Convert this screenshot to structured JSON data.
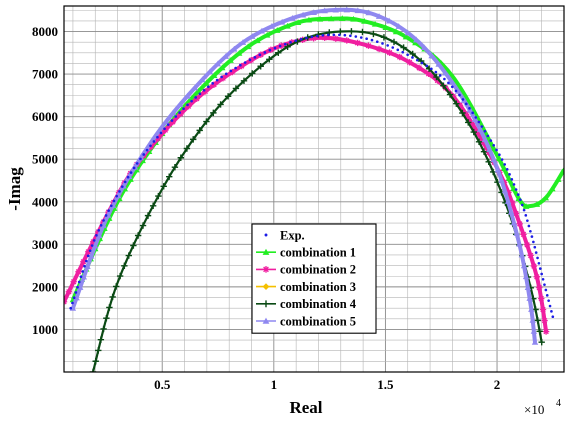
{
  "chart_data": {
    "type": "line",
    "xlabel": "Real",
    "ylabel": "-Imag",
    "x_multiplier_label": "×10",
    "x_multiplier_exp": "4",
    "xlim": [
      0.06,
      2.3
    ],
    "ylim": [
      0,
      8600
    ],
    "xticks": [
      0.5,
      1,
      1.5,
      2
    ],
    "xtick_labels": [
      "0.5",
      "1",
      "1.5",
      "2"
    ],
    "yticks": [
      1000,
      2000,
      3000,
      4000,
      5000,
      6000,
      7000,
      8000
    ],
    "ytick_labels": [
      "1000",
      "2000",
      "3000",
      "4000",
      "5000",
      "6000",
      "7000",
      "8000"
    ],
    "grid": true,
    "legend_position": "bottom-center",
    "series": [
      {
        "name": "Exp.",
        "color": "#1c1ce6",
        "marker": "dot",
        "x": [
          0.09,
          0.2,
          0.35,
          0.5,
          0.65,
          0.8,
          1.0,
          1.2,
          1.4,
          1.6,
          1.8,
          2.0,
          2.1,
          2.15,
          2.2,
          2.25
        ],
        "y": [
          1500,
          3150,
          4600,
          5650,
          6450,
          7050,
          7600,
          7900,
          7850,
          7450,
          6700,
          5200,
          4100,
          3300,
          2300,
          1300
        ]
      },
      {
        "name": "combination 1",
        "color": "#22ee22",
        "marker": "triangle",
        "x": [
          0.1,
          0.3,
          0.5,
          0.7,
          0.9,
          1.1,
          1.25,
          1.4,
          1.6,
          1.8,
          2.0,
          2.1,
          2.15,
          2.22,
          2.3
        ],
        "y": [
          1700,
          4000,
          5600,
          6800,
          7700,
          8200,
          8300,
          8250,
          7850,
          6950,
          5100,
          4050,
          3900,
          4100,
          4750
        ]
      },
      {
        "name": "combination 2",
        "color": "#f01fa0",
        "marker": "star",
        "x": [
          0.06,
          0.2,
          0.35,
          0.5,
          0.65,
          0.8,
          1.0,
          1.2,
          1.4,
          1.6,
          1.8,
          2.0,
          2.1,
          2.18,
          2.22
        ],
        "y": [
          1650,
          3150,
          4600,
          5600,
          6400,
          7000,
          7600,
          7850,
          7700,
          7300,
          6500,
          4800,
          3500,
          2200,
          950
        ]
      },
      {
        "name": "combination 3",
        "color": "#f5c000",
        "marker": "diamond",
        "x": [],
        "y": []
      },
      {
        "name": "combination 4",
        "color": "#0a4a14",
        "marker": "plus",
        "x": [
          0.19,
          0.3,
          0.5,
          0.7,
          0.9,
          1.1,
          1.3,
          1.5,
          1.7,
          1.9,
          2.05,
          2.15,
          2.2
        ],
        "y": [
          0,
          2100,
          4300,
          5900,
          7000,
          7750,
          8000,
          7850,
          7100,
          5600,
          3800,
          2000,
          700
        ]
      },
      {
        "name": "combination 5",
        "color": "#8f88f0",
        "marker": "triangle",
        "x": [
          0.1,
          0.25,
          0.45,
          0.65,
          0.85,
          1.05,
          1.25,
          1.45,
          1.65,
          1.85,
          2.0,
          2.1,
          2.15,
          2.17
        ],
        "y": [
          1500,
          3600,
          5400,
          6700,
          7700,
          8250,
          8500,
          8400,
          7750,
          6400,
          4800,
          3000,
          1600,
          700
        ]
      }
    ]
  }
}
